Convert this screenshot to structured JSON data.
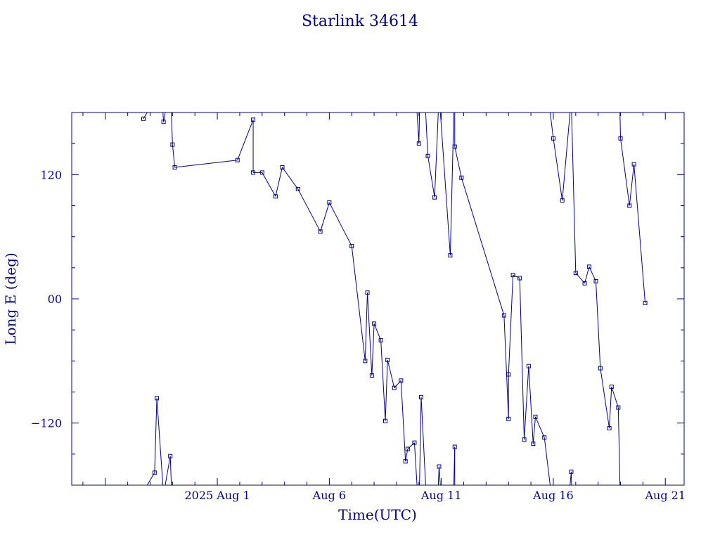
{
  "chart_data": {
    "type": "line",
    "title": "Starlink 34614",
    "xlabel": "Time(UTC)",
    "ylabel": "Long E (deg)",
    "x_ticks": [
      {
        "t": 0.0,
        "label": "2025 Aug  1"
      },
      {
        "t": 5.0,
        "label": "Aug  6"
      },
      {
        "t": 10.0,
        "label": "Aug 11"
      },
      {
        "t": 15.0,
        "label": "Aug 16"
      },
      {
        "t": 20.0,
        "label": "Aug 21"
      }
    ],
    "y_ticks": [
      {
        "v": 120,
        "label": "120"
      },
      {
        "v": 0,
        "label": "00"
      },
      {
        "v": -120,
        "label": "−120"
      }
    ],
    "xlim": [
      -6.5,
      20.84
    ],
    "ylim": [
      -180,
      180
    ],
    "grid": false,
    "marker": "square",
    "color": "#00008b",
    "series": [
      {
        "values": [
          {
            "x": -3.3,
            "y": 174
          },
          {
            "x": -2.8,
            "y": -168
          },
          {
            "x": -2.7,
            "y": -96
          },
          {
            "x": -2.4,
            "y": 171
          },
          {
            "x": -2.1,
            "y": -152
          },
          {
            "x": -2.0,
            "y": 149
          },
          {
            "x": -1.9,
            "y": 127
          },
          {
            "x": 0.9,
            "y": 134
          },
          {
            "x": 1.6,
            "y": 173
          },
          {
            "x": 1.6,
            "y": 122
          },
          {
            "x": 2.0,
            "y": 122
          },
          {
            "x": 2.6,
            "y": 99
          },
          {
            "x": 2.9,
            "y": 127
          },
          {
            "x": 3.6,
            "y": 106
          },
          {
            "x": 4.6,
            "y": 65
          },
          {
            "x": 5.0,
            "y": 93
          },
          {
            "x": 6.0,
            "y": 51
          },
          {
            "x": 6.6,
            "y": -60
          },
          {
            "x": 6.7,
            "y": 6
          },
          {
            "x": 6.9,
            "y": -74
          },
          {
            "x": 7.0,
            "y": -24
          },
          {
            "x": 7.3,
            "y": -40
          },
          {
            "x": 7.5,
            "y": -118
          },
          {
            "x": 7.6,
            "y": -59
          },
          {
            "x": 7.9,
            "y": -86
          },
          {
            "x": 8.2,
            "y": -79
          },
          {
            "x": 8.4,
            "y": -157
          },
          {
            "x": 8.5,
            "y": -145
          },
          {
            "x": 8.8,
            "y": -139
          },
          {
            "x": 9.0,
            "y": 150
          },
          {
            "x": 9.1,
            "y": -95
          },
          {
            "x": 9.4,
            "y": 138
          },
          {
            "x": 9.7,
            "y": 98
          },
          {
            "x": 9.9,
            "y": -162
          },
          {
            "x": 10.4,
            "y": 42
          },
          {
            "x": 10.6,
            "y": -143
          },
          {
            "x": 10.6,
            "y": 147
          },
          {
            "x": 10.9,
            "y": 117
          },
          {
            "x": 12.8,
            "y": -16
          },
          {
            "x": 13.0,
            "y": -116
          },
          {
            "x": 13.0,
            "y": -73
          },
          {
            "x": 13.2,
            "y": 23
          },
          {
            "x": 13.5,
            "y": 20
          },
          {
            "x": 13.7,
            "y": -136
          },
          {
            "x": 13.9,
            "y": -65
          },
          {
            "x": 14.1,
            "y": -140
          },
          {
            "x": 14.2,
            "y": -114
          },
          {
            "x": 14.6,
            "y": -134
          },
          {
            "x": 15.0,
            "y": 155
          },
          {
            "x": 15.4,
            "y": 95
          },
          {
            "x": 15.8,
            "y": -167
          },
          {
            "x": 16.0,
            "y": 25
          },
          {
            "x": 16.4,
            "y": 15
          },
          {
            "x": 16.6,
            "y": 31
          },
          {
            "x": 16.9,
            "y": 17
          },
          {
            "x": 17.1,
            "y": -67
          },
          {
            "x": 17.5,
            "y": -125
          },
          {
            "x": 17.6,
            "y": -85
          },
          {
            "x": 17.9,
            "y": -105
          },
          {
            "x": 18.0,
            "y": 155
          },
          {
            "x": 18.4,
            "y": 90
          },
          {
            "x": 18.6,
            "y": 130
          },
          {
            "x": 19.1,
            "y": -4
          }
        ]
      }
    ]
  }
}
